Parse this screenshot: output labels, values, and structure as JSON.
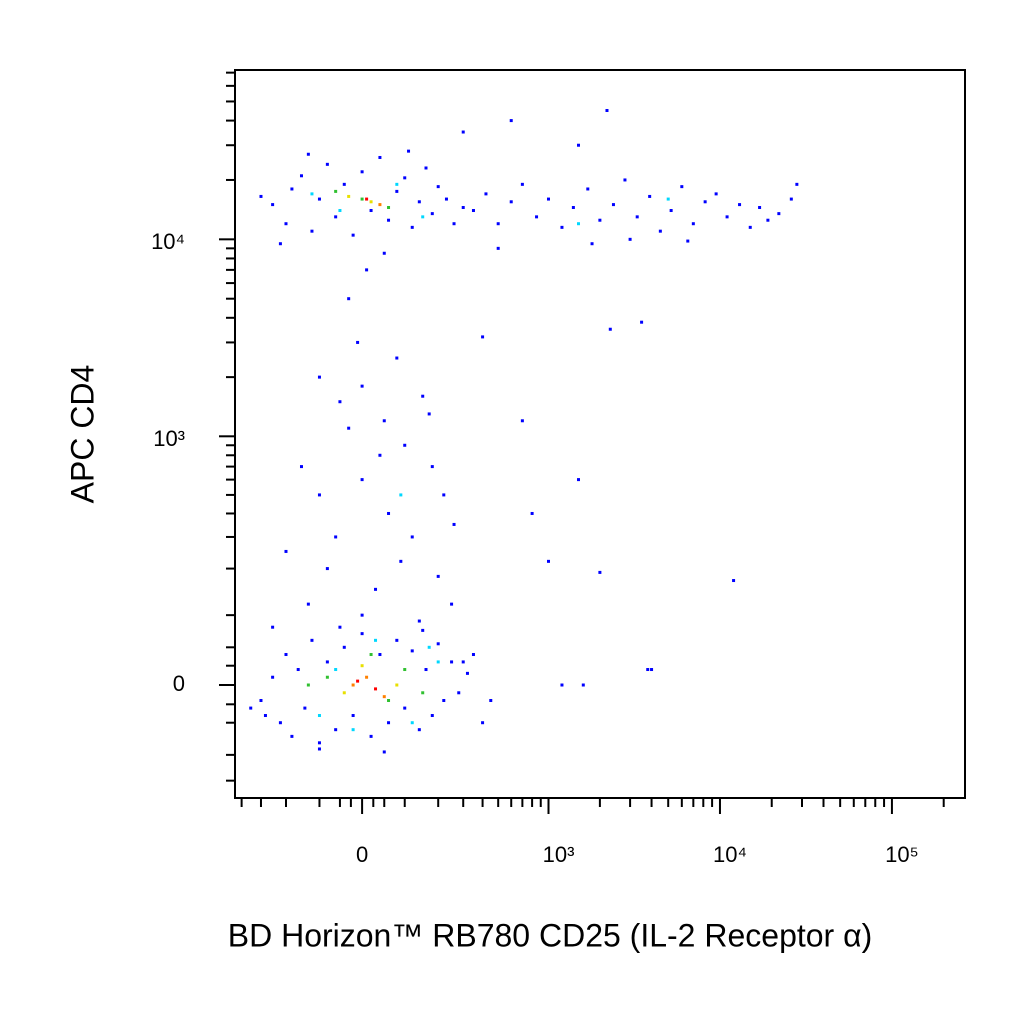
{
  "chart_data": {
    "type": "scatter",
    "x_label": "BD Horizon™ RB780 CD25 (IL-2 Receptor α)",
    "y_label": "APC CD4",
    "xscale": "biexponential",
    "yscale": "biexponential",
    "xlim": [
      -440,
      266000
    ],
    "ylim": [
      -191,
      72200
    ],
    "xticks": [
      0,
      {
        "value": 1000,
        "label": "10³"
      },
      {
        "value": 10000,
        "label": "10⁴"
      },
      {
        "value": 100000,
        "label": "10⁵"
      }
    ],
    "yticks": [
      0,
      {
        "value": 1000,
        "label": "10³"
      },
      {
        "value": 10000,
        "label": "10⁴"
      }
    ],
    "xminor": [
      -400,
      -300,
      -200,
      -100,
      -50,
      -25,
      25,
      50,
      100,
      200,
      300,
      400,
      500,
      600,
      700,
      800,
      900,
      2000,
      3000,
      4000,
      5000,
      6000,
      7000,
      8000,
      9000,
      20000,
      30000,
      40000,
      50000,
      60000,
      70000,
      80000,
      90000,
      200000
    ],
    "yminor": [
      -150,
      -100,
      -50,
      -25,
      25,
      50,
      100,
      200,
      300,
      400,
      500,
      600,
      700,
      800,
      900,
      2000,
      3000,
      4000,
      5000,
      6000,
      7000,
      8000,
      9000,
      20000,
      30000,
      40000,
      50000,
      60000,
      70000
    ],
    "series": [
      {
        "color": "#0000ff",
        "x": [
          -250,
          -200,
          -180,
          -150,
          -120,
          -100,
          -80,
          -60,
          -40,
          -20,
          0,
          20,
          40,
          60,
          80,
          100,
          120,
          140,
          160,
          180,
          200,
          230,
          260,
          300,
          -300,
          -220,
          50,
          -130,
          110,
          10,
          -30,
          350,
          420,
          500,
          600,
          700,
          850,
          1000,
          1200,
          1400,
          1700,
          2000,
          2400,
          2800,
          3300,
          3900,
          4500,
          5200,
          6000,
          7000,
          8200,
          9500,
          11000,
          13000,
          15000,
          17000,
          19000,
          22000,
          26000,
          28000,
          3000,
          500,
          1800,
          6500,
          600,
          2200,
          300,
          1500,
          400,
          2300,
          3500,
          700,
          1500,
          800,
          1000,
          12000,
          2000,
          4000,
          1200,
          1600,
          300,
          3800,
          -100,
          -50,
          0,
          50,
          100,
          150,
          -150,
          -100,
          0,
          60,
          120,
          180,
          -200,
          -80,
          30,
          90,
          200,
          -130,
          0,
          140,
          250,
          -250,
          -60,
          40,
          220,
          -30,
          80,
          -10,
          170,
          260,
          -300,
          -250,
          -220,
          -200,
          -180,
          -160,
          -140,
          -120,
          -100,
          -80,
          -60,
          -40,
          -20,
          0,
          20,
          40,
          60,
          80,
          100,
          120,
          140,
          160,
          180,
          200,
          220,
          250,
          280,
          320,
          400,
          -280,
          -350,
          -100,
          50,
          150,
          -50,
          350,
          450
        ],
        "y": [
          15000,
          12000,
          18000,
          21000,
          11000,
          16000,
          24000,
          13000,
          19000,
          10500,
          22000,
          14000,
          26000,
          12500,
          17500,
          20500,
          11500,
          15500,
          23000,
          13500,
          18500,
          16000,
          12000,
          14500,
          16500,
          9500,
          8500,
          27000,
          28000,
          7000,
          5000,
          14000,
          17000,
          12000,
          15500,
          19000,
          13000,
          16000,
          11500,
          14500,
          18000,
          12500,
          15000,
          20000,
          13000,
          16500,
          11000,
          14000,
          18500,
          12000,
          15500,
          17000,
          13000,
          15000,
          11500,
          14500,
          12500,
          13500,
          16000,
          19000,
          10000,
          9000,
          9500,
          9800,
          40000,
          45000,
          35000,
          30000,
          3200,
          3500,
          3800,
          1200,
          600,
          400,
          220,
          170,
          190,
          20,
          0,
          0,
          30,
          20,
          2000,
          1500,
          1800,
          1200,
          900,
          1600,
          700,
          500,
          600,
          400,
          300,
          700,
          250,
          200,
          150,
          220,
          180,
          120,
          100,
          90,
          120,
          80,
          300,
          800,
          500,
          1100,
          2500,
          3000,
          1300,
          350,
          -20,
          10,
          -50,
          40,
          -70,
          20,
          -30,
          60,
          -80,
          30,
          -60,
          50,
          -40,
          70,
          -70,
          40,
          -50,
          60,
          -30,
          45,
          -60,
          20,
          -40,
          55,
          -20,
          30,
          -10,
          15,
          -50,
          -40,
          -30,
          -90,
          -95,
          75,
          80,
          40,
          -20
        ]
      },
      {
        "color": "#00d8ff",
        "x": [
          -50,
          80,
          150,
          -120,
          30,
          -100,
          120,
          -60,
          200,
          1500,
          5000,
          90,
          -20,
          170
        ],
        "y": [
          14000,
          19000,
          13000,
          17000,
          60,
          -40,
          -50,
          20,
          30,
          12000,
          16000,
          500,
          -60,
          50
        ]
      },
      {
        "color": "#30c030",
        "x": [
          0,
          60,
          -60,
          -80,
          60,
          20,
          -130,
          150,
          100
        ],
        "y": [
          16000,
          14500,
          17500,
          10,
          -20,
          40,
          0,
          -10,
          20
        ]
      },
      {
        "color": "#e8e000",
        "x": [
          20,
          -30,
          -40,
          80,
          0
        ],
        "y": [
          15500,
          16500,
          -10,
          0,
          25
        ]
      },
      {
        "color": "#ff8000",
        "x": [
          40,
          -20,
          50,
          10
        ],
        "y": [
          15000,
          0,
          -15,
          10
        ]
      },
      {
        "color": "#ff0000",
        "x": [
          10,
          -10,
          30
        ],
        "y": [
          16000,
          5,
          -5
        ]
      }
    ]
  }
}
